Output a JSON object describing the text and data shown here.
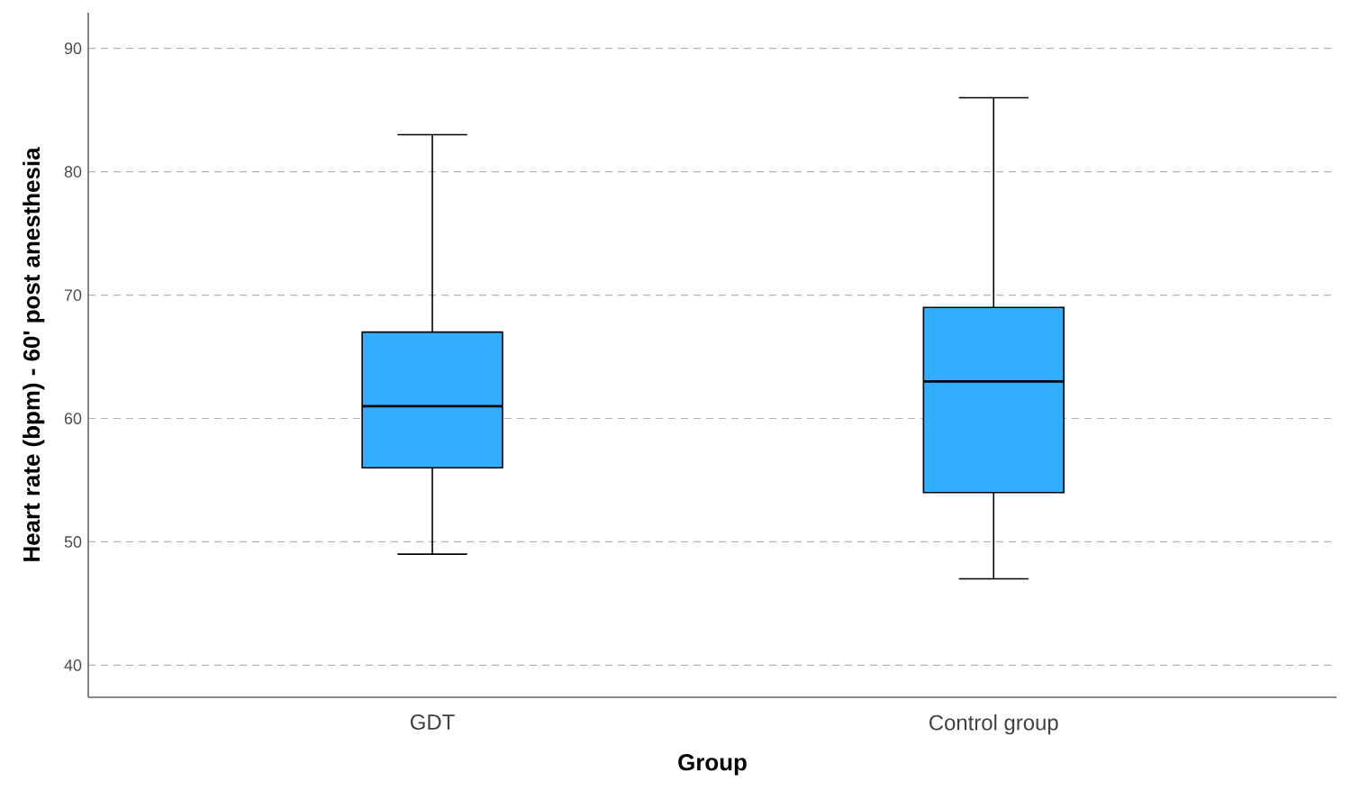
{
  "chart_data": {
    "type": "box",
    "xlabel": "Group",
    "ylabel": "Heart rate (bpm) - 60' post anesthesia",
    "categories": [
      "GDT",
      "Control group"
    ],
    "boxes": [
      {
        "low": 49,
        "q1": 56,
        "median": 61,
        "q3": 67,
        "high": 83
      },
      {
        "low": 47,
        "q1": 54,
        "median": 63,
        "q3": 69,
        "high": 86
      }
    ],
    "color": "#33adff",
    "ylim": [
      37.4,
      92.9
    ],
    "yticks": [
      40,
      50,
      60,
      70,
      80,
      90
    ],
    "grid": "y"
  }
}
